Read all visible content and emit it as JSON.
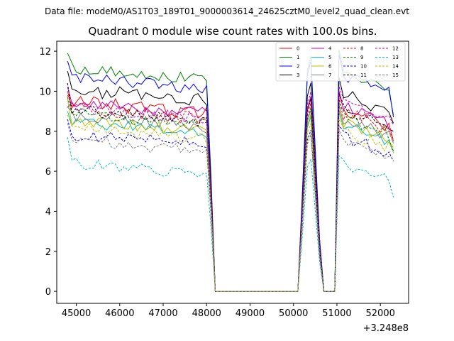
{
  "chart_data": {
    "type": "line",
    "suptitle": "Data file: modeM0/AS1T03_189T01_9000003614_24625cztM0_level2_quad_clean.evt",
    "title": "Quadrant 0 module wise count rates with 100.0s bins.",
    "xlabel": "",
    "ylabel": "",
    "x_offset_label": "+3.248e8",
    "xlim": [
      44550,
      52650
    ],
    "ylim": [
      -0.6,
      12.5
    ],
    "xticks": [
      45000,
      46000,
      47000,
      48000,
      49000,
      50000,
      51000,
      52000
    ],
    "xtick_labels": [
      "45000",
      "46000",
      "47000",
      "48000",
      "49000",
      "50000",
      "51000",
      "52000"
    ],
    "yticks": [
      0,
      2,
      4,
      6,
      8,
      10,
      12
    ],
    "ytick_labels": [
      "0",
      "2",
      "4",
      "6",
      "8",
      "10",
      "12"
    ],
    "grid": false,
    "legend_location": "top-right",
    "legend_columns": 4,
    "segments": [
      {
        "start": 44800,
        "end": 48000,
        "points": 33
      },
      {
        "start": 48000,
        "end": 50400,
        "points": 25
      },
      {
        "start": 50400,
        "end": 51100,
        "points": 8
      },
      {
        "start": 51100,
        "end": 52300,
        "points": 13
      }
    ],
    "gap_points": [
      {
        "x": 48100,
        "frac": 0.55
      },
      {
        "x": 50200,
        "frac": 0.45
      },
      {
        "x": 50600,
        "frac": 0.25
      },
      {
        "x": 50950,
        "frac": 0.55
      }
    ],
    "series": [
      {
        "name": "0",
        "color": "#ff0000",
        "dashed": false,
        "level1": 8.9,
        "level2": 8.6,
        "noise": 0.35,
        "seed": 1,
        "first": 10.0,
        "last": 7.5
      },
      {
        "name": "1",
        "color": "#008000",
        "dashed": false,
        "level1": 10.6,
        "level2": 10.5,
        "noise": 0.3,
        "seed": 2,
        "first": 11.9,
        "last": 8.8
      },
      {
        "name": "2",
        "color": "#0000ff",
        "dashed": false,
        "level1": 10.1,
        "level2": 10.3,
        "noise": 0.3,
        "seed": 3,
        "first": 11.5,
        "last": 8.7
      },
      {
        "name": "3",
        "color": "#000000",
        "dashed": false,
        "level1": 9.5,
        "level2": 9.3,
        "noise": 0.35,
        "seed": 4,
        "first": 11.0,
        "last": 8.4
      },
      {
        "name": "4",
        "color": "#bf00bf",
        "dashed": false,
        "level1": 8.9,
        "level2": 8.7,
        "noise": 0.3,
        "seed": 5,
        "first": 10.2,
        "last": 8.0
      },
      {
        "name": "5",
        "color": "#00bfbf",
        "dashed": false,
        "level1": 7.9,
        "level2": 7.8,
        "noise": 0.3,
        "seed": 6,
        "first": 9.0,
        "last": 7.0
      },
      {
        "name": "6",
        "color": "#bfbf00",
        "dashed": false,
        "level1": 8.0,
        "level2": 7.9,
        "noise": 0.3,
        "seed": 7,
        "first": 9.6,
        "last": 7.2
      },
      {
        "name": "7",
        "color": "#808080",
        "dashed": false,
        "level1": 8.2,
        "level2": 8.1,
        "noise": 0.3,
        "seed": 8,
        "first": 9.2,
        "last": 7.4
      },
      {
        "name": "8",
        "color": "#ff0000",
        "dashed": true,
        "level1": 8.6,
        "level2": 8.4,
        "noise": 0.35,
        "seed": 9,
        "first": 9.8,
        "last": 7.6
      },
      {
        "name": "9",
        "color": "#008000",
        "dashed": true,
        "level1": 8.3,
        "level2": 8.2,
        "noise": 0.3,
        "seed": 10,
        "first": 9.7,
        "last": 7.0
      },
      {
        "name": "10",
        "color": "#0000ff",
        "dashed": true,
        "level1": 7.3,
        "level2": 7.2,
        "noise": 0.35,
        "seed": 11,
        "first": 8.6,
        "last": 6.5
      },
      {
        "name": "11",
        "color": "#000000",
        "dashed": true,
        "level1": 8.5,
        "level2": 8.6,
        "noise": 0.3,
        "seed": 12,
        "first": 10.4,
        "last": 8.0
      },
      {
        "name": "12",
        "color": "#bf00bf",
        "dashed": true,
        "level1": 8.6,
        "level2": 8.9,
        "noise": 0.3,
        "seed": 13,
        "first": 9.2,
        "last": 8.3
      },
      {
        "name": "13",
        "color": "#00bfbf",
        "dashed": true,
        "level1": 5.8,
        "level2": 5.9,
        "noise": 0.3,
        "seed": 14,
        "first": 7.7,
        "last": 4.7
      },
      {
        "name": "14",
        "color": "#bfbf00",
        "dashed": true,
        "level1": 7.6,
        "level2": 7.5,
        "noise": 0.3,
        "seed": 15,
        "first": 8.8,
        "last": 6.9
      },
      {
        "name": "15",
        "color": "#808080",
        "dashed": true,
        "level1": 7.0,
        "level2": 7.0,
        "noise": 0.3,
        "seed": 16,
        "first": 8.4,
        "last": 6.6
      }
    ]
  }
}
